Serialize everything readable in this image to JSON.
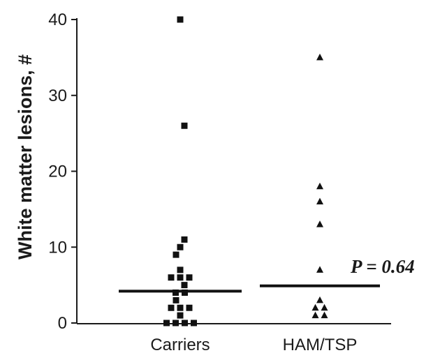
{
  "chart_data": {
    "type": "scatter",
    "ylabel": "White matter lesions, #",
    "ylim": [
      0,
      40
    ],
    "yticks": [
      0,
      10,
      20,
      30,
      40
    ],
    "categories": [
      "Carriers",
      "HAM/TSP"
    ],
    "series": [
      {
        "category": "Carriers",
        "marker": "square",
        "values": [
          40,
          26,
          11,
          10,
          9,
          7,
          6,
          6,
          6,
          5,
          4,
          4,
          3,
          2,
          2,
          2,
          1,
          0,
          0,
          0,
          0
        ],
        "median": 4.2
      },
      {
        "category": "HAM/TSP",
        "marker": "triangle",
        "values": [
          35,
          18,
          16,
          13,
          7,
          3,
          2,
          2,
          1,
          1
        ],
        "median": 4.9
      }
    ],
    "annotation": "P = 0.64",
    "colors": {
      "marker": "#111111",
      "axis": "#1a1a1a"
    }
  }
}
